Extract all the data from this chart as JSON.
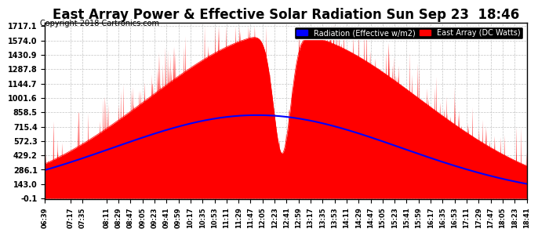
{
  "title": "East Array Power & Effective Solar Radiation Sun Sep 23  18:46",
  "copyright": "Copyright 2018 Cartronics.com",
  "legend_labels": [
    "Radiation (Effective w/m2)",
    "East Array (DC Watts)"
  ],
  "legend_colors": [
    "#0000ff",
    "#ff0000"
  ],
  "yticks": [
    -0.1,
    143.0,
    286.1,
    429.2,
    572.3,
    715.4,
    858.5,
    1001.6,
    1144.7,
    1287.8,
    1430.9,
    1574.0,
    1717.1
  ],
  "ymin": -0.1,
  "ymax": 1717.1,
  "background_color": "#ffffff",
  "plot_bg_color": "#ffffff",
  "grid_color": "#aaaaaa",
  "xtick_count": 47,
  "time_start": "06:39",
  "time_end": "18:41"
}
